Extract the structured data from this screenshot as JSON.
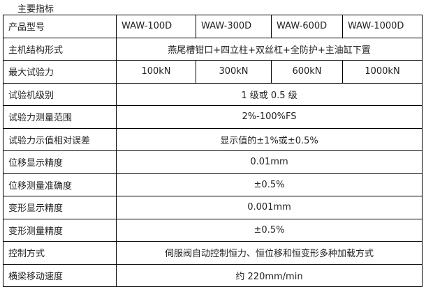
{
  "title": "主要指标",
  "models_label": "产品型号",
  "models": [
    "WAW-100D",
    "WAW-300D",
    "WAW-600D",
    "WAW-1000D"
  ],
  "structure": {
    "label": "主机结构形式",
    "value": "燕尾槽钳口+四立柱+双丝杠+全防护+主油缸下置"
  },
  "max_force": {
    "label": "最大试验力",
    "values": [
      "100kN",
      "300kN",
      "600kN",
      "1000kN"
    ]
  },
  "rows": [
    {
      "label": "试验机级别",
      "value": "1 级或 0.5 级"
    },
    {
      "label": "试验力测量范围",
      "value": "2%-100%FS"
    },
    {
      "label": "试验力示值相对误差",
      "value": "显示值的±1%或±0.5%"
    },
    {
      "label": "位移显示精度",
      "value": "0.01mm"
    },
    {
      "label": "位移测量准确度",
      "value": "±0.5%"
    },
    {
      "label": "变形显示精度",
      "value": "0.001mm"
    },
    {
      "label": "变形测量精度",
      "value": "±0.5%"
    },
    {
      "label": "控制方式",
      "value": "伺服阀自动控制恒力、恒位移和恒变形多种加载方式"
    },
    {
      "label": "横梁移动速度",
      "value": "约 220mm/min"
    }
  ]
}
